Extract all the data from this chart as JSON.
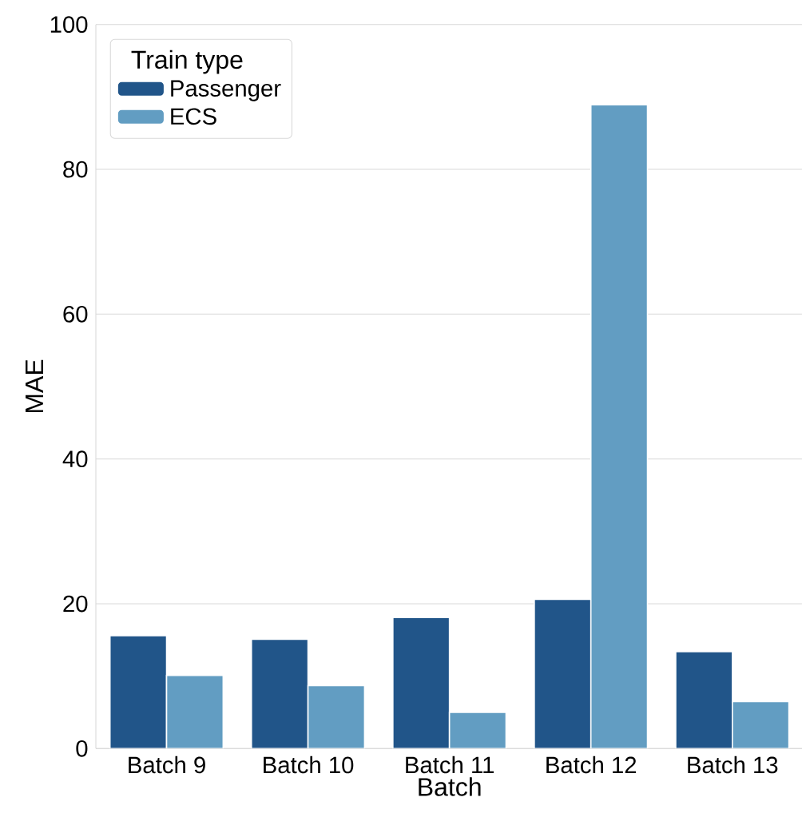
{
  "chart_data": {
    "type": "bar",
    "xlabel": "Batch",
    "ylabel": "MAE",
    "legend_title": "Train type",
    "categories": [
      "Batch 9",
      "Batch 10",
      "Batch 11",
      "Batch 12",
      "Batch 13"
    ],
    "series": [
      {
        "name": "Passenger",
        "color": "#215589",
        "values": [
          15.6,
          15.1,
          18.1,
          20.6,
          13.4
        ]
      },
      {
        "name": "ECS",
        "color": "#629dc2",
        "values": [
          10.1,
          8.7,
          5.0,
          88.9,
          6.5
        ]
      }
    ],
    "ylim": [
      0,
      100
    ],
    "yticks": [
      0,
      20,
      40,
      60,
      80,
      100
    ],
    "grid": "y",
    "legend": "top left"
  }
}
